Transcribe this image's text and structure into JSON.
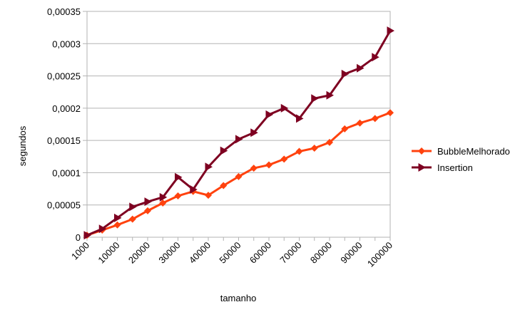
{
  "chart_data": {
    "type": "line",
    "title": "",
    "xlabel": "tamanho",
    "ylabel": "segundos",
    "ylim": [
      0,
      0.00035
    ],
    "y_ticks": [
      {
        "value": 0,
        "label": "0"
      },
      {
        "value": 5e-05,
        "label": "0,00005"
      },
      {
        "value": 0.0001,
        "label": "0,0001"
      },
      {
        "value": 0.00015,
        "label": "0,00015"
      },
      {
        "value": 0.0002,
        "label": "0,0002"
      },
      {
        "value": 0.00025,
        "label": "0,00025"
      },
      {
        "value": 0.0003,
        "label": "0,0003"
      },
      {
        "value": 0.00035,
        "label": "0,00035"
      }
    ],
    "x": [
      1000,
      5000,
      10000,
      15000,
      20000,
      25000,
      30000,
      35000,
      40000,
      45000,
      50000,
      55000,
      60000,
      65000,
      70000,
      75000,
      80000,
      85000,
      90000,
      95000,
      100000
    ],
    "x_tick_labels": [
      "1000",
      "10000",
      "20000",
      "30000",
      "40000",
      "50000",
      "60000",
      "70000",
      "80000",
      "90000",
      "100000"
    ],
    "x_tick_label_indices": [
      0,
      2,
      4,
      6,
      8,
      10,
      12,
      14,
      16,
      18,
      20
    ],
    "grid": {
      "horizontal": true,
      "vertical": false
    },
    "legend_position": "right",
    "series": [
      {
        "name": "BubbleMelhorado",
        "color": "#ff420e",
        "marker": "diamond",
        "values": [
          3e-06,
          1.1e-05,
          1.9e-05,
          2.8e-05,
          4.1e-05,
          5.3e-05,
          6.4e-05,
          7.1e-05,
          6.5e-05,
          8e-05,
          9.4e-05,
          0.000107,
          0.000112,
          0.000121,
          0.000133,
          0.000138,
          0.000147,
          0.000168,
          0.000177,
          0.000184,
          0.000193
        ]
      },
      {
        "name": "Insertion",
        "color": "#7e0021",
        "marker": "triangle-right",
        "values": [
          3e-06,
          1.3e-05,
          3e-05,
          4.7e-05,
          5.5e-05,
          6.2e-05,
          9.3e-05,
          7.4e-05,
          0.000109,
          0.000134,
          0.000152,
          0.000162,
          0.00019,
          0.0002,
          0.000184,
          0.000215,
          0.00022,
          0.000253,
          0.000262,
          0.000279,
          0.00032
        ]
      }
    ]
  }
}
